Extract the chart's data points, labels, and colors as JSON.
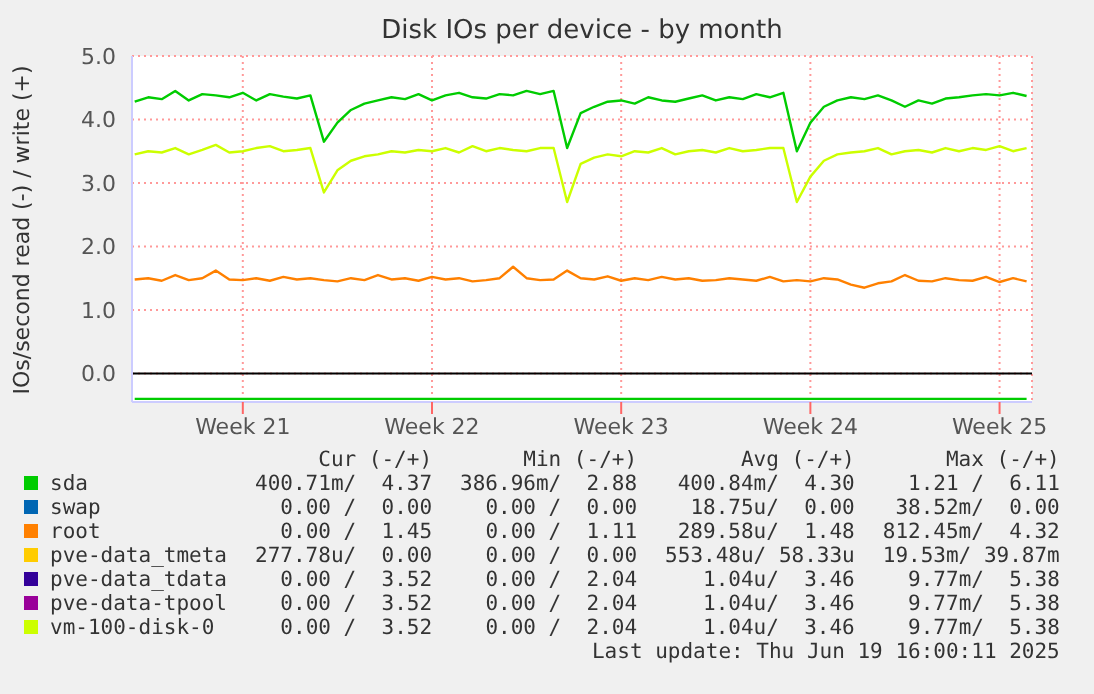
{
  "chart_data": {
    "type": "line",
    "title": "Disk IOs per device - by month",
    "ylabel": "IOs/second read (-) / write (+)",
    "categories": [
      null,
      null,
      null,
      null,
      null,
      null,
      null,
      null,
      "Week 21",
      null,
      null,
      null,
      null,
      null,
      null,
      null,
      null,
      null,
      null,
      null,
      null,
      null,
      "Week 22",
      null,
      null,
      null,
      null,
      null,
      null,
      null,
      null,
      null,
      null,
      null,
      null,
      null,
      "Week 23",
      null,
      null,
      null,
      null,
      null,
      null,
      null,
      null,
      null,
      null,
      null,
      null,
      null,
      "Week 24",
      null,
      null,
      null,
      null,
      null,
      null,
      null,
      null,
      null,
      null,
      null,
      null,
      null,
      "Week 25",
      null,
      null
    ],
    "ylim": [
      -0.45,
      5.0
    ],
    "yticks": [
      {
        "value": 0,
        "label": "0.0"
      },
      {
        "value": 1,
        "label": "1.0"
      },
      {
        "value": 2,
        "label": "2.0"
      },
      {
        "value": 3,
        "label": "3.0"
      },
      {
        "value": 4,
        "label": "4.0"
      },
      {
        "value": 5,
        "label": "5.0"
      }
    ],
    "grid": true,
    "legend": "bottom",
    "ref_lines": [
      {
        "axis": "y",
        "value": 0,
        "color": "#000000"
      }
    ],
    "series": [
      {
        "name": "sda",
        "color": "#00cc00",
        "values": [
          4.28,
          4.35,
          4.32,
          4.45,
          4.3,
          4.4,
          4.38,
          4.35,
          4.42,
          4.3,
          4.4,
          4.36,
          4.33,
          4.38,
          3.65,
          3.95,
          4.15,
          4.25,
          4.3,
          4.35,
          4.32,
          4.4,
          4.3,
          4.38,
          4.42,
          4.35,
          4.33,
          4.4,
          4.38,
          4.45,
          4.4,
          4.45,
          3.55,
          4.1,
          4.2,
          4.28,
          4.3,
          4.25,
          4.35,
          4.3,
          4.28,
          4.33,
          4.38,
          4.3,
          4.35,
          4.32,
          4.4,
          4.35,
          4.42,
          3.5,
          3.95,
          4.2,
          4.3,
          4.35,
          4.32,
          4.38,
          4.3,
          4.2,
          4.3,
          4.25,
          4.33,
          4.35,
          4.38,
          4.4,
          4.38,
          4.42,
          4.37
        ]
      },
      {
        "color": "#00cc00",
        "values": [
          -0.4,
          -0.4,
          -0.4,
          -0.4,
          -0.4,
          -0.4,
          -0.4,
          -0.4,
          -0.4,
          -0.4,
          -0.4,
          -0.4,
          -0.4,
          -0.4,
          -0.4,
          -0.4,
          -0.4,
          -0.4,
          -0.4,
          -0.4,
          -0.4,
          -0.4,
          -0.4,
          -0.4,
          -0.4,
          -0.4,
          -0.4,
          -0.4,
          -0.4,
          -0.4,
          -0.4,
          -0.4,
          -0.4,
          -0.4,
          -0.4,
          -0.4,
          -0.4,
          -0.4,
          -0.4,
          -0.4,
          -0.4,
          -0.4,
          -0.4,
          -0.4,
          -0.4,
          -0.4,
          -0.4,
          -0.4,
          -0.4,
          -0.4,
          -0.4,
          -0.4,
          -0.4,
          -0.4,
          -0.4,
          -0.4,
          -0.4,
          -0.4,
          -0.4,
          -0.4,
          -0.4,
          -0.4,
          -0.4,
          -0.4,
          -0.4,
          -0.4,
          -0.4
        ]
      },
      {
        "name": "swap",
        "color": "#0066b3",
        "values": [
          null,
          null,
          null,
          null,
          null,
          null,
          null,
          null,
          null,
          null,
          null,
          null,
          null,
          null,
          null,
          null,
          null,
          null,
          null,
          null,
          null,
          null,
          null,
          null,
          null,
          null,
          null,
          null,
          null,
          null,
          null,
          null,
          null,
          null,
          null,
          null,
          null,
          null,
          null,
          null,
          null,
          null,
          null,
          null,
          null,
          null,
          null,
          null,
          null,
          null,
          null,
          null,
          null,
          null,
          null,
          null,
          null,
          null,
          null,
          null,
          null,
          null,
          null,
          null,
          null,
          null,
          null
        ]
      },
      {
        "name": "root",
        "color": "#ff8000",
        "values": [
          1.48,
          1.5,
          1.46,
          1.55,
          1.47,
          1.5,
          1.62,
          1.48,
          1.47,
          1.5,
          1.46,
          1.52,
          1.48,
          1.5,
          1.47,
          1.45,
          1.5,
          1.47,
          1.55,
          1.48,
          1.5,
          1.46,
          1.52,
          1.48,
          1.5,
          1.45,
          1.47,
          1.5,
          1.68,
          1.5,
          1.47,
          1.48,
          1.62,
          1.5,
          1.48,
          1.53,
          1.46,
          1.5,
          1.47,
          1.52,
          1.48,
          1.5,
          1.46,
          1.47,
          1.5,
          1.48,
          1.46,
          1.52,
          1.45,
          1.47,
          1.45,
          1.5,
          1.48,
          1.4,
          1.35,
          1.42,
          1.45,
          1.55,
          1.46,
          1.45,
          1.5,
          1.47,
          1.46,
          1.52,
          1.44,
          1.5,
          1.45
        ]
      },
      {
        "name": "pve-data_tmeta",
        "color": "#ffcc00",
        "values": [
          null,
          null,
          null,
          null,
          null,
          null,
          null,
          null,
          null,
          null,
          null,
          null,
          null,
          null,
          null,
          null,
          null,
          null,
          null,
          null,
          null,
          null,
          null,
          null,
          null,
          null,
          null,
          null,
          null,
          null,
          null,
          null,
          null,
          null,
          null,
          null,
          null,
          null,
          null,
          null,
          null,
          null,
          null,
          null,
          null,
          null,
          null,
          null,
          null,
          null,
          null,
          null,
          null,
          null,
          null,
          null,
          null,
          null,
          null,
          null,
          null,
          null,
          null,
          null,
          null,
          null,
          null
        ]
      },
      {
        "name": "pve-data_tdata",
        "color": "#330099",
        "values": [
          null,
          null,
          null,
          null,
          null,
          null,
          null,
          null,
          null,
          null,
          null,
          null,
          null,
          null,
          null,
          null,
          null,
          null,
          null,
          null,
          null,
          null,
          null,
          null,
          null,
          null,
          null,
          null,
          null,
          null,
          null,
          null,
          null,
          null,
          null,
          null,
          null,
          null,
          null,
          null,
          null,
          null,
          null,
          null,
          null,
          null,
          null,
          null,
          null,
          null,
          null,
          null,
          null,
          null,
          null,
          null,
          null,
          null,
          null,
          null,
          null,
          null,
          null,
          null,
          null,
          null,
          null
        ]
      },
      {
        "name": "pve-data-tpool",
        "color": "#990099",
        "values": [
          null,
          null,
          null,
          null,
          null,
          null,
          null,
          null,
          null,
          null,
          null,
          null,
          null,
          null,
          null,
          null,
          null,
          null,
          null,
          null,
          null,
          null,
          null,
          null,
          null,
          null,
          null,
          null,
          null,
          null,
          null,
          null,
          null,
          null,
          null,
          null,
          null,
          null,
          null,
          null,
          null,
          null,
          null,
          null,
          null,
          null,
          null,
          null,
          null,
          null,
          null,
          null,
          null,
          null,
          null,
          null,
          null,
          null,
          null,
          null,
          null,
          null,
          null,
          null,
          null,
          null,
          null
        ]
      },
      {
        "name": "vm-100-disk-0",
        "color": "#ccff00",
        "values": [
          3.45,
          3.5,
          3.48,
          3.55,
          3.45,
          3.52,
          3.6,
          3.48,
          3.5,
          3.55,
          3.58,
          3.5,
          3.52,
          3.55,
          2.85,
          3.2,
          3.35,
          3.42,
          3.45,
          3.5,
          3.48,
          3.52,
          3.5,
          3.55,
          3.48,
          3.58,
          3.5,
          3.55,
          3.52,
          3.5,
          3.55,
          3.55,
          2.7,
          3.3,
          3.4,
          3.45,
          3.42,
          3.5,
          3.48,
          3.55,
          3.45,
          3.5,
          3.52,
          3.48,
          3.55,
          3.5,
          3.52,
          3.55,
          3.55,
          2.7,
          3.1,
          3.35,
          3.45,
          3.48,
          3.5,
          3.55,
          3.45,
          3.5,
          3.52,
          3.48,
          3.55,
          3.5,
          3.55,
          3.52,
          3.58,
          3.5,
          3.55
        ]
      }
    ],
    "annotations": [
      "Cur (-/+)",
      "Min (-/+)",
      "Avg (-/+)",
      "Max (-/+)",
      "400.71m/  4.37",
      "386.96m/  2.88",
      "400.84m/  4.30",
      "1.21 /  6.11",
      "0.00 /  0.00",
      "0.00 /  0.00",
      "18.75u/  0.00",
      "38.52m/  0.00",
      "0.00 /  1.45",
      "0.00 /  1.11",
      "289.58u/  1.48",
      "812.45m/  4.32",
      "277.78u/  0.00",
      "0.00 /  0.00",
      "553.48u/ 58.33u",
      "19.53m/ 39.87m",
      "0.00 /  3.52",
      "0.00 /  2.04",
      "1.04u/  3.46",
      "9.77m/  5.38",
      "0.00 /  3.52",
      "0.00 /  2.04",
      "1.04u/  3.46",
      "9.77m/  5.38",
      "0.00 /  3.52",
      "0.00 /  2.04",
      "1.04u/  3.46",
      "9.77m/  5.38",
      "Last update: Thu Jun 19 16:00:11 2025"
    ]
  }
}
